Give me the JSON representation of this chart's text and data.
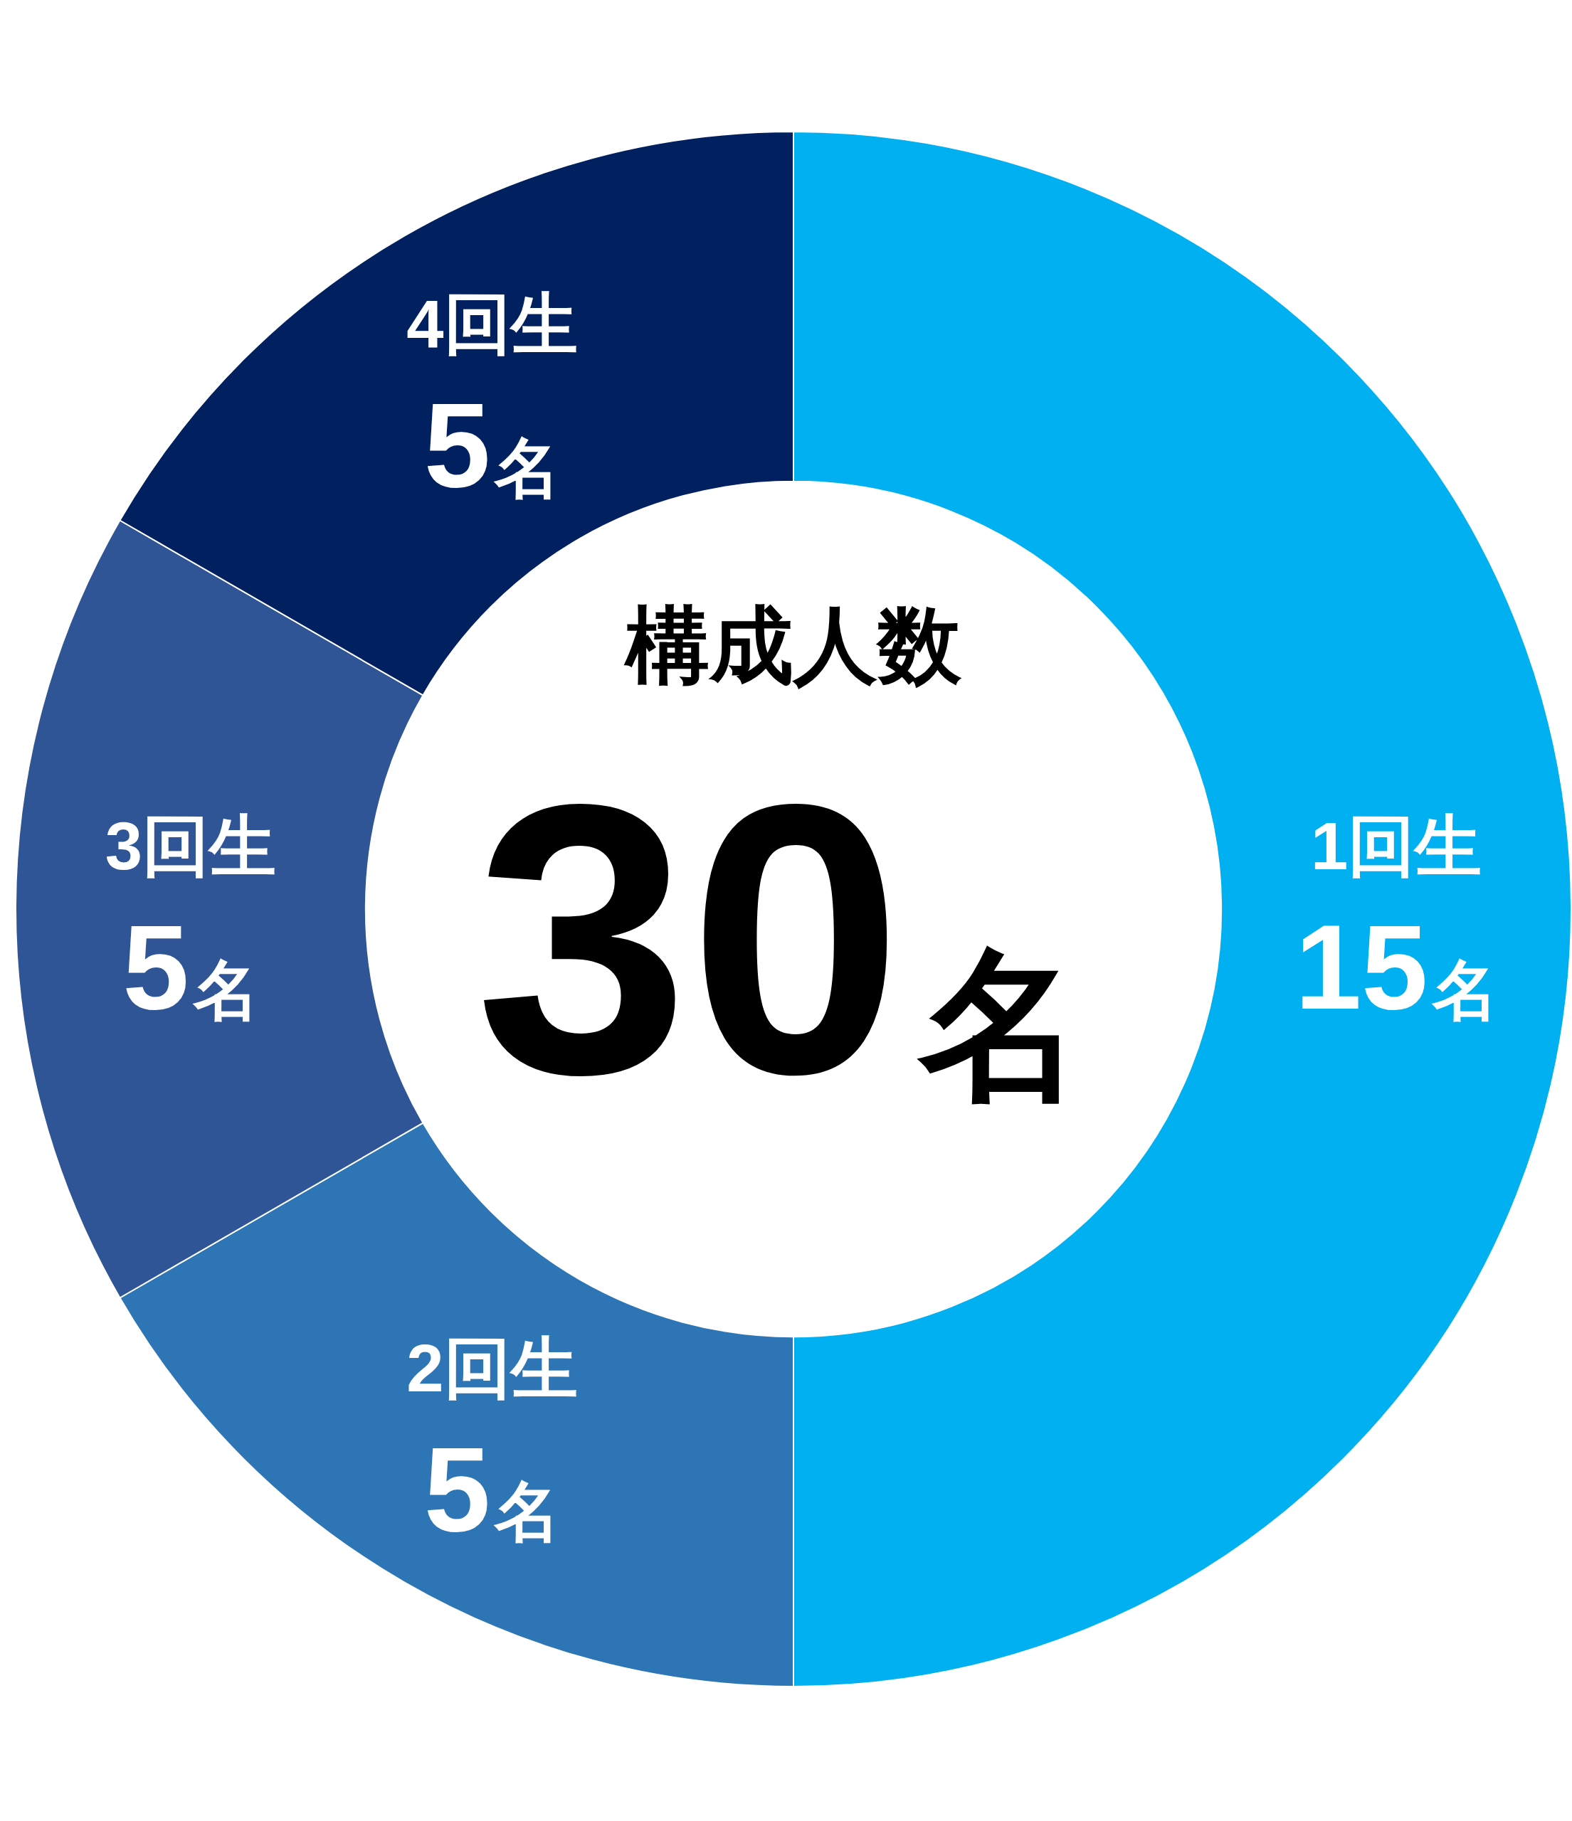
{
  "chart_data": {
    "type": "donut",
    "title": "構成人数",
    "annotations": [
      "30名"
    ],
    "categories": [
      "1回生",
      "2回生",
      "3回生",
      "4回生"
    ],
    "values": [
      15,
      5,
      5,
      5
    ],
    "colors": [
      "#00b0f0",
      "#2e75b6",
      "#2f5597",
      "#002060"
    ],
    "value_labels": [
      "15名",
      "5名",
      "5名",
      "5名"
    ]
  }
}
